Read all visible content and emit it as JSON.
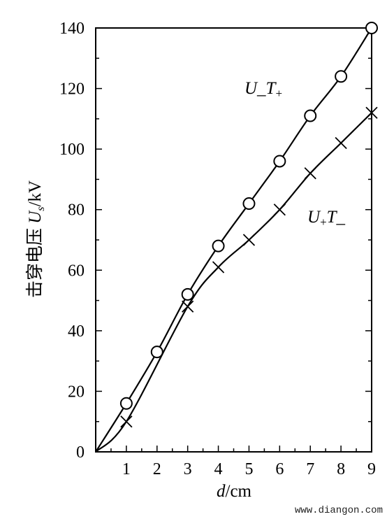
{
  "chart_data": {
    "type": "line",
    "xlabel_var": "d",
    "xlabel_unit": "/cm",
    "ylabel_text": "击穿电压 ",
    "ylabel_var": "U",
    "ylabel_sub": "s",
    "ylabel_unit": "/kV",
    "xlim": [
      0,
      9
    ],
    "ylim": [
      0,
      140
    ],
    "x_ticks": [
      "1",
      "2",
      "3",
      "4",
      "5",
      "6",
      "7",
      "8",
      "9"
    ],
    "y_ticks": [
      "0",
      "20",
      "40",
      "60",
      "80",
      "100",
      "120",
      "140"
    ],
    "grid": false,
    "series": [
      {
        "name": "U_T+",
        "label_main": "U_T",
        "label_sub": "+",
        "marker": "circle",
        "x": [
          1,
          2,
          3,
          4,
          5,
          6,
          7,
          8,
          9
        ],
        "y": [
          16,
          33,
          52,
          68,
          82,
          96,
          111,
          124,
          140
        ]
      },
      {
        "name": "U+T_",
        "label_a": "U",
        "label_sub": "+",
        "label_b": "T_",
        "marker": "cross",
        "x": [
          1,
          3,
          4,
          5,
          6,
          7,
          8,
          9
        ],
        "y": [
          10,
          48,
          61,
          70,
          80,
          92,
          102,
          112
        ]
      }
    ]
  },
  "watermark": "www.diangon.com"
}
